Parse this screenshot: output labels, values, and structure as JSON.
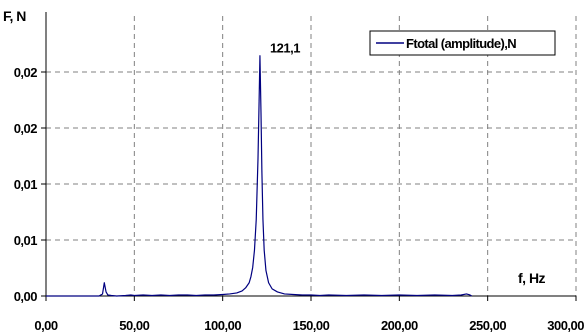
{
  "chart_data": {
    "type": "line",
    "xlabel": "f, Hz",
    "ylabel": "F, N",
    "xlim": [
      0,
      300
    ],
    "ylim": [
      0,
      0.0275
    ],
    "x_ticks": [
      "0,00",
      "50,00",
      "100,00",
      "150,00",
      "200,00",
      "250,00",
      "300,00"
    ],
    "y_ticks": [
      "0,00",
      "0,01",
      "0,01",
      "0,02",
      "0,02"
    ],
    "grid": true,
    "legend_position": "top-right",
    "series": [
      {
        "name": "Ftotal (amplitude),N",
        "color": "#000080",
        "x": [
          0,
          30,
          32,
          33,
          34,
          35,
          37,
          40,
          45,
          48,
          50,
          55,
          60,
          65,
          70,
          75,
          80,
          85,
          90,
          95,
          100,
          104,
          108,
          111,
          113,
          115,
          116,
          117,
          118,
          119,
          120,
          120.5,
          121.1,
          121.7,
          122.2,
          122.8,
          123.5,
          124.5,
          126,
          128,
          131,
          135,
          140,
          145,
          150,
          155,
          160,
          170,
          180,
          190,
          200,
          210,
          220,
          230,
          235,
          238,
          240,
          241
        ],
        "y": [
          0,
          0,
          0.0002,
          0.0013,
          0.0004,
          0.0001,
          5e-05,
          0,
          5e-05,
          0.0001,
          5e-05,
          0.0001,
          5e-05,
          0.0001,
          5e-05,
          0.0001,
          0.0001,
          5e-05,
          0.0001,
          0.0001,
          0.00015,
          0.0002,
          0.0003,
          0.0005,
          0.0008,
          0.0013,
          0.0019,
          0.0028,
          0.0045,
          0.0075,
          0.0135,
          0.018,
          0.0236,
          0.018,
          0.0122,
          0.0075,
          0.0045,
          0.0025,
          0.0013,
          0.0007,
          0.0004,
          0.0002,
          0.00015,
          0.0001,
          0.0001,
          5e-05,
          0.0001,
          5e-05,
          0.0001,
          5e-05,
          0.0001,
          5e-05,
          0.0001,
          5e-05,
          0.0001,
          0.0002,
          0.0001,
          0
        ]
      }
    ],
    "annotations": [
      {
        "text": "121,1",
        "x": 121.1,
        "y": 0.0236
      }
    ]
  }
}
